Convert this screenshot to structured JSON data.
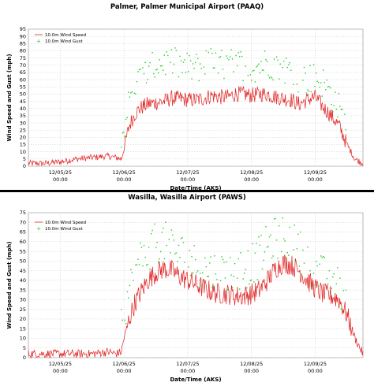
{
  "chart_data": [
    {
      "type": "line",
      "title": "Palmer, Palmer Municipal Airport (PAAQ)",
      "xlabel": "Date/Time (AKS)",
      "ylabel": "Wind Speed and Gust (mph)",
      "ylim": [
        0,
        95
      ],
      "yticks": [
        "0",
        "5",
        "10",
        "15",
        "20",
        "25",
        "30",
        "35",
        "40",
        "45",
        "50",
        "55",
        "60",
        "65",
        "70",
        "75",
        "80",
        "85",
        "90",
        "95"
      ],
      "xlim": [
        "12/04/25 12:00",
        "12/09/25 18:00"
      ],
      "xticks": [
        {
          "date": "12/05/25",
          "time": "00:00",
          "x": "12/05/25 00:00"
        },
        {
          "date": "12/06/25",
          "time": "00:00",
          "x": "12/06/25 00:00"
        },
        {
          "date": "12/07/25",
          "time": "00:00",
          "x": "12/07/25 00:00"
        },
        {
          "date": "12/08/25",
          "time": "00:00",
          "x": "12/08/25 00:00"
        },
        {
          "date": "12/09/25",
          "time": "00:00",
          "x": "12/09/25 00:00"
        }
      ],
      "grid": true,
      "legend": "top-left",
      "series": [
        {
          "name": "10.0m Wind Speed",
          "style": "line",
          "color": "#e02020",
          "x": [
            "12/04/25 12:00",
            "12/04/25 18:00",
            "12/05/25 00:00",
            "12/05/25 06:00",
            "12/05/25 12:00",
            "12/05/25 18:00",
            "12/05/25 21:00",
            "12/05/25 23:00",
            "12/06/25 00:00",
            "12/06/25 02:00",
            "12/06/25 04:00",
            "12/06/25 06:00",
            "12/06/25 09:00",
            "12/06/25 12:00",
            "12/06/25 15:00",
            "12/06/25 18:00",
            "12/06/25 21:00",
            "12/07/25 00:00",
            "12/07/25 03:00",
            "12/07/25 06:00",
            "12/07/25 09:00",
            "12/07/25 12:00",
            "12/07/25 15:00",
            "12/07/25 18:00",
            "12/07/25 21:00",
            "12/08/25 00:00",
            "12/08/25 03:00",
            "12/08/25 06:00",
            "12/08/25 09:00",
            "12/08/25 12:00",
            "12/08/25 15:00",
            "12/08/25 18:00",
            "12/08/25 21:00",
            "12/09/25 00:00",
            "12/09/25 03:00",
            "12/09/25 06:00",
            "12/09/25 09:00",
            "12/09/25 12:00",
            "12/09/25 15:00",
            "12/09/25 18:00"
          ],
          "y": [
            2,
            2,
            3,
            5,
            6,
            7,
            6,
            5,
            12,
            28,
            36,
            40,
            43,
            44,
            45,
            47,
            47,
            46,
            46,
            47,
            49,
            48,
            48,
            50,
            50,
            49,
            50,
            50,
            48,
            47,
            46,
            43,
            46,
            48,
            41,
            35,
            28,
            15,
            5,
            2
          ]
        },
        {
          "name": "10.0m Wind Gust",
          "style": "points",
          "color": "#22cc22",
          "x": [
            "12/05/25 23:00",
            "12/06/25 02:00",
            "12/06/25 04:00",
            "12/06/25 06:00",
            "12/06/25 09:00",
            "12/06/25 12:00",
            "12/06/25 15:00",
            "12/06/25 18:00",
            "12/06/25 21:00",
            "12/07/25 00:00",
            "12/07/25 03:00",
            "12/07/25 06:00",
            "12/07/25 09:00",
            "12/07/25 12:00",
            "12/07/25 15:00",
            "12/07/25 18:00",
            "12/07/25 21:00",
            "12/08/25 00:00",
            "12/08/25 03:00",
            "12/08/25 06:00",
            "12/08/25 09:00",
            "12/08/25 12:00",
            "12/08/25 15:00",
            "12/08/25 18:00",
            "12/08/25 21:00",
            "12/09/25 00:00",
            "12/09/25 03:00",
            "12/09/25 06:00",
            "12/09/25 09:00",
            "12/09/25 12:00"
          ],
          "y": [
            17,
            45,
            55,
            60,
            65,
            70,
            72,
            72,
            70,
            68,
            68,
            70,
            72,
            70,
            70,
            72,
            70,
            68,
            70,
            72,
            70,
            68,
            66,
            62,
            60,
            62,
            58,
            50,
            40,
            25
          ]
        }
      ]
    },
    {
      "type": "line",
      "title": "Wasilla, Wasilla Airport (PAWS)",
      "xlabel": "Date/Time (AKS)",
      "ylabel": "Wind Speed and Gust (mph)",
      "ylim": [
        0,
        75
      ],
      "yticks": [
        "0",
        "5",
        "10",
        "15",
        "20",
        "25",
        "30",
        "35",
        "40",
        "45",
        "50",
        "55",
        "60",
        "65",
        "70",
        "75"
      ],
      "xlim": [
        "12/04/25 12:00",
        "12/09/25 18:00"
      ],
      "xticks": [
        {
          "date": "12/05/25",
          "time": "00:00",
          "x": "12/05/25 00:00"
        },
        {
          "date": "12/06/25",
          "time": "00:00",
          "x": "12/06/25 00:00"
        },
        {
          "date": "12/07/25",
          "time": "00:00",
          "x": "12/07/25 00:00"
        },
        {
          "date": "12/08/25",
          "time": "00:00",
          "x": "12/08/25 00:00"
        },
        {
          "date": "12/09/25",
          "time": "00:00",
          "x": "12/09/25 00:00"
        }
      ],
      "grid": true,
      "legend": "top-left",
      "series": [
        {
          "name": "10.0m Wind Speed",
          "style": "line",
          "color": "#e02020",
          "x": [
            "12/04/25 12:00",
            "12/04/25 18:00",
            "12/05/25 00:00",
            "12/05/25 06:00",
            "12/05/25 12:00",
            "12/05/25 18:00",
            "12/05/25 21:00",
            "12/05/25 23:00",
            "12/06/25 00:00",
            "12/06/25 02:00",
            "12/06/25 04:00",
            "12/06/25 06:00",
            "12/06/25 09:00",
            "12/06/25 12:00",
            "12/06/25 15:00",
            "12/06/25 18:00",
            "12/06/25 21:00",
            "12/07/25 00:00",
            "12/07/25 03:00",
            "12/07/25 06:00",
            "12/07/25 09:00",
            "12/07/25 12:00",
            "12/07/25 15:00",
            "12/07/25 18:00",
            "12/07/25 21:00",
            "12/08/25 00:00",
            "12/08/25 03:00",
            "12/08/25 06:00",
            "12/08/25 09:00",
            "12/08/25 12:00",
            "12/08/25 15:00",
            "12/08/25 18:00",
            "12/08/25 21:00",
            "12/09/25 00:00",
            "12/09/25 03:00",
            "12/09/25 06:00",
            "12/09/25 09:00",
            "12/09/25 12:00",
            "12/09/25 15:00",
            "12/09/25 18:00"
          ],
          "y": [
            2,
            2,
            2,
            2,
            2,
            3,
            2,
            3,
            10,
            20,
            28,
            33,
            40,
            44,
            46,
            45,
            42,
            40,
            38,
            36,
            34,
            33,
            33,
            32,
            32,
            33,
            35,
            40,
            46,
            49,
            48,
            45,
            40,
            36,
            33,
            32,
            30,
            22,
            10,
            2
          ]
        },
        {
          "name": "10.0m Wind Gust",
          "style": "points",
          "color": "#22cc22",
          "x": [
            "12/05/25 23:00",
            "12/06/25 02:00",
            "12/06/25 04:00",
            "12/06/25 06:00",
            "12/06/25 09:00",
            "12/06/25 12:00",
            "12/06/25 15:00",
            "12/06/25 18:00",
            "12/06/25 21:00",
            "12/07/25 00:00",
            "12/07/25 03:00",
            "12/07/25 06:00",
            "12/07/25 09:00",
            "12/07/25 12:00",
            "12/07/25 15:00",
            "12/07/25 18:00",
            "12/07/25 21:00",
            "12/08/25 00:00",
            "12/08/25 03:00",
            "12/08/25 06:00",
            "12/08/25 09:00",
            "12/08/25 12:00",
            "12/08/25 15:00",
            "12/08/25 18:00",
            "12/08/25 21:00",
            "12/09/25 00:00",
            "12/09/25 03:00",
            "12/09/25 06:00",
            "12/09/25 09:00",
            "12/09/25 12:00"
          ],
          "y": [
            17,
            35,
            42,
            50,
            55,
            60,
            60,
            57,
            54,
            52,
            48,
            46,
            45,
            44,
            44,
            45,
            46,
            48,
            52,
            58,
            62,
            62,
            60,
            56,
            50,
            45,
            42,
            40,
            36,
            25
          ]
        }
      ]
    }
  ]
}
